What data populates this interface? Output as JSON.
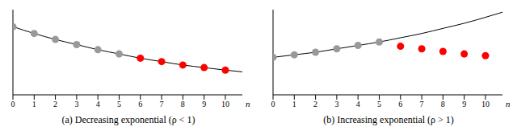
{
  "chart_data": [
    {
      "type": "scatter",
      "title": "(a) Decreasing exponential (ρ < 1)",
      "x_label": "n",
      "xlim": [
        0,
        10.8
      ],
      "xticks": [
        0,
        1,
        2,
        3,
        4,
        5,
        6,
        7,
        8,
        9,
        10
      ],
      "ylim": [
        0,
        100
      ],
      "tick_labels": "x",
      "grid": false,
      "series": [
        {
          "type": "line",
          "color": "#000000",
          "x": [
            0,
            1,
            2,
            3,
            4,
            5,
            6,
            7,
            8,
            9,
            10,
            10.8
          ],
          "values": [
            80,
            72,
            65,
            59,
            53,
            48,
            43,
            39,
            35,
            32,
            29,
            27
          ]
        },
        {
          "type": "scatter",
          "color": "#999999",
          "x": [
            0,
            1,
            2,
            3,
            4,
            5
          ],
          "values": [
            80,
            72,
            65,
            59,
            53,
            48
          ]
        },
        {
          "type": "scatter",
          "color": "#ff0000",
          "x": [
            6,
            7,
            8,
            9,
            10
          ],
          "values": [
            43,
            39,
            35,
            32,
            29
          ]
        }
      ]
    },
    {
      "type": "scatter",
      "title": "(b) Increasing exponential (ρ > 1)",
      "x_label": "n",
      "xlim": [
        0,
        10.8
      ],
      "xticks": [
        0,
        1,
        2,
        3,
        4,
        5,
        6,
        7,
        8,
        9,
        10
      ],
      "ylim": [
        0,
        100
      ],
      "tick_labels": "x",
      "grid": false,
      "series": [
        {
          "type": "line",
          "color": "#000000",
          "x": [
            0,
            1,
            2,
            3,
            4,
            5,
            6,
            7,
            8,
            9,
            10,
            10.8
          ],
          "values": [
            44,
            47,
            50,
            54,
            58,
            62,
            67,
            72,
            78,
            84,
            91,
            97
          ]
        },
        {
          "type": "scatter",
          "color": "#999999",
          "x": [
            0,
            1,
            2,
            3,
            4,
            5
          ],
          "values": [
            44,
            47,
            50,
            54,
            58,
            62
          ]
        },
        {
          "type": "scatter",
          "color": "#ff0000",
          "x": [
            6,
            7,
            8,
            9,
            10
          ],
          "values": [
            57,
            54,
            51,
            48,
            46
          ]
        }
      ]
    }
  ]
}
